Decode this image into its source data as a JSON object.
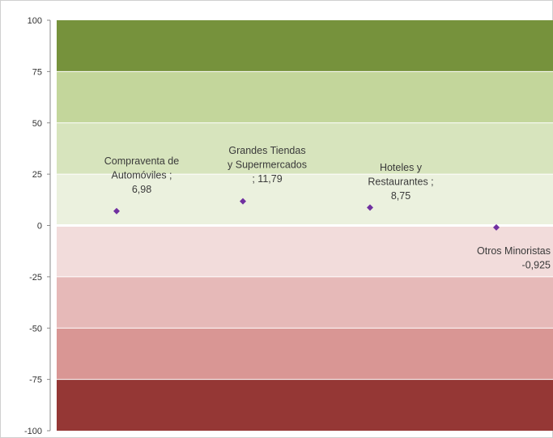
{
  "chart_data": {
    "type": "scatter",
    "title": "",
    "xlabel": "",
    "ylabel": "",
    "ylim": [
      -100,
      100
    ],
    "y_ticks": [
      100,
      75,
      50,
      25,
      0,
      -25,
      -50,
      -75,
      -100
    ],
    "grid": false,
    "legend": "none",
    "bands": [
      {
        "from": 75,
        "to": 100,
        "color": "#76923c"
      },
      {
        "from": 50,
        "to": 75,
        "color": "#c3d69b"
      },
      {
        "from": 25,
        "to": 50,
        "color": "#d7e4bd"
      },
      {
        "from": 0,
        "to": 25,
        "color": "#ebf1de"
      },
      {
        "from": -25,
        "to": 0,
        "color": "#f2dcdb"
      },
      {
        "from": -50,
        "to": -25,
        "color": "#e6b9b8"
      },
      {
        "from": -75,
        "to": -50,
        "color": "#d99694"
      },
      {
        "from": -100,
        "to": -75,
        "color": "#953735"
      }
    ],
    "marker_color": "#7030a0",
    "points": [
      {
        "x": 1,
        "y": 6.98,
        "label_lines": [
          "Compraventa de",
          "Automóviles ;",
          "6,98"
        ]
      },
      {
        "x": 2,
        "y": 11.79,
        "label_lines": [
          "Grandes Tiendas",
          "y Supermercados",
          "; 11,79"
        ]
      },
      {
        "x": 3,
        "y": 8.75,
        "label_lines": [
          "Hoteles y",
          "Restaurantes ;",
          "8,75"
        ]
      },
      {
        "x": 4,
        "y": -0.925,
        "label_lines": [
          "Otros Minoristas",
          "-0,925"
        ]
      }
    ]
  }
}
